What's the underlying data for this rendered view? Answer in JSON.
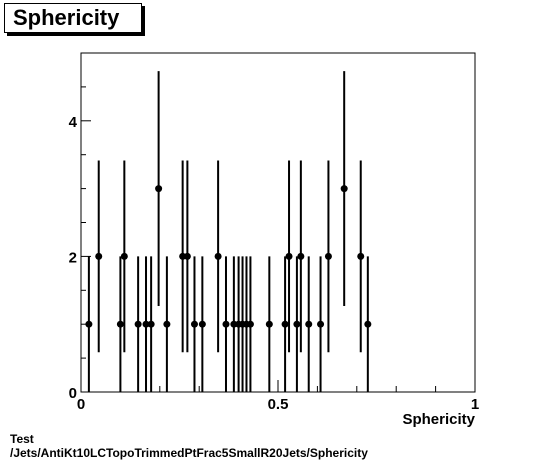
{
  "header": {
    "title": "Sphericity"
  },
  "footer": {
    "line1": "Test",
    "line2": "/Jets/AntiKt10LCTopoTrimmedPtFrac5SmallR20Jets/Sphericity"
  },
  "chart_data": {
    "type": "scatter",
    "title": "Sphericity",
    "xlabel": "Sphericity",
    "ylabel": "",
    "xlim": [
      0,
      1
    ],
    "ylim": [
      0,
      5
    ],
    "x_ticks": [
      0,
      0.5,
      1
    ],
    "x_tick_labels": [
      "0",
      "0.5",
      "1"
    ],
    "y_ticks": [
      0,
      2,
      4
    ],
    "y_tick_labels": [
      "0",
      "2",
      "4"
    ],
    "grid": false,
    "legend": "none",
    "marker_color": "#000000",
    "series": [
      {
        "points": [
          {
            "x": 0.02,
            "y": 1,
            "err": 1.0
          },
          {
            "x": 0.045,
            "y": 2,
            "err": 1.414
          },
          {
            "x": 0.1,
            "y": 1,
            "err": 1.0
          },
          {
            "x": 0.11,
            "y": 2,
            "err": 1.414
          },
          {
            "x": 0.145,
            "y": 1,
            "err": 1.0
          },
          {
            "x": 0.165,
            "y": 1,
            "err": 1.0
          },
          {
            "x": 0.178,
            "y": 1,
            "err": 1.0
          },
          {
            "x": 0.197,
            "y": 3,
            "err": 1.732
          },
          {
            "x": 0.218,
            "y": 1,
            "err": 1.0
          },
          {
            "x": 0.258,
            "y": 2,
            "err": 1.414
          },
          {
            "x": 0.27,
            "y": 2,
            "err": 1.414
          },
          {
            "x": 0.288,
            "y": 1,
            "err": 1.0
          },
          {
            "x": 0.308,
            "y": 1,
            "err": 1.0
          },
          {
            "x": 0.348,
            "y": 2,
            "err": 1.414
          },
          {
            "x": 0.368,
            "y": 1,
            "err": 1.0
          },
          {
            "x": 0.388,
            "y": 1,
            "err": 1.0
          },
          {
            "x": 0.4,
            "y": 1,
            "err": 1.0
          },
          {
            "x": 0.41,
            "y": 1,
            "err": 1.0
          },
          {
            "x": 0.42,
            "y": 1,
            "err": 1.0
          },
          {
            "x": 0.43,
            "y": 1,
            "err": 1.0
          },
          {
            "x": 0.478,
            "y": 1,
            "err": 1.0
          },
          {
            "x": 0.518,
            "y": 1,
            "err": 1.0
          },
          {
            "x": 0.528,
            "y": 2,
            "err": 1.414
          },
          {
            "x": 0.548,
            "y": 1,
            "err": 1.0
          },
          {
            "x": 0.558,
            "y": 2,
            "err": 1.414
          },
          {
            "x": 0.578,
            "y": 1,
            "err": 1.0
          },
          {
            "x": 0.608,
            "y": 1,
            "err": 1.0
          },
          {
            "x": 0.628,
            "y": 2,
            "err": 1.414
          },
          {
            "x": 0.668,
            "y": 3,
            "err": 1.732
          },
          {
            "x": 0.71,
            "y": 2,
            "err": 1.414
          },
          {
            "x": 0.728,
            "y": 1,
            "err": 1.0
          }
        ]
      }
    ]
  }
}
